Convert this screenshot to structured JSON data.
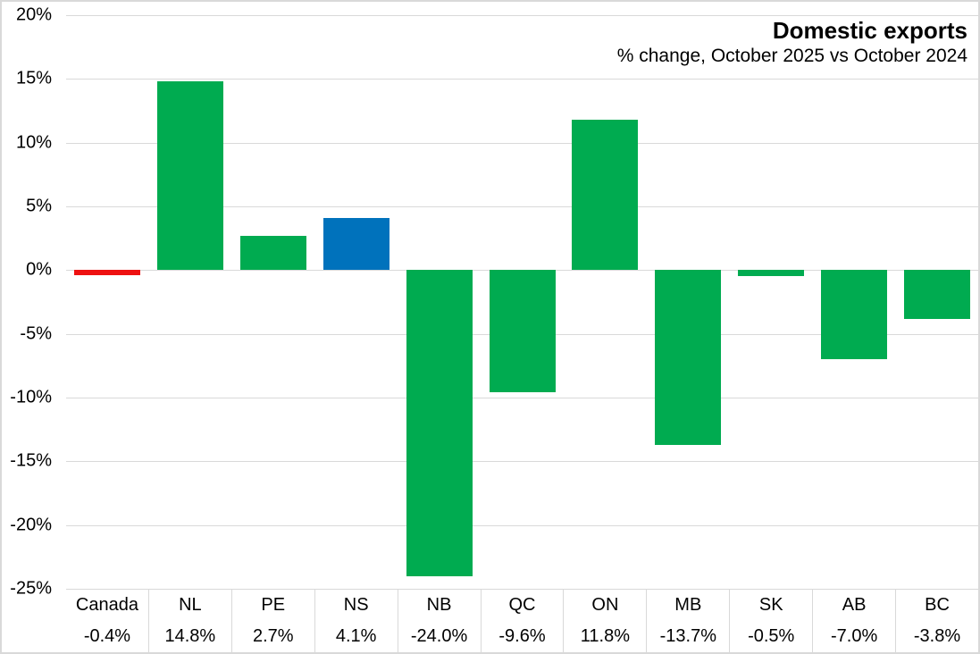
{
  "chart_data": {
    "type": "bar",
    "title": "Domestic exports",
    "subtitle": "% change, October 2025 vs October 2024",
    "categories": [
      "Canada",
      "NL",
      "PE",
      "NS",
      "NB",
      "QC",
      "ON",
      "MB",
      "SK",
      "AB",
      "BC"
    ],
    "values": [
      -0.4,
      14.8,
      2.7,
      4.1,
      -24.0,
      -9.6,
      11.8,
      -13.7,
      -0.5,
      -7.0,
      -3.8
    ],
    "value_labels": [
      "-0.4%",
      "14.8%",
      "2.7%",
      "4.1%",
      "-24.0%",
      "-9.6%",
      "11.8%",
      "-13.7%",
      "-0.5%",
      "-7.0%",
      "-3.8%"
    ],
    "bar_colors": [
      "#ee1111",
      "#00ab50",
      "#00ab50",
      "#0072bc",
      "#00ab50",
      "#00ab50",
      "#00ab50",
      "#00ab50",
      "#00ab50",
      "#00ab50",
      "#00ab50"
    ],
    "ylim": [
      -25,
      20
    ],
    "y_ticks": [
      {
        "value": 20,
        "label": "20%"
      },
      {
        "value": 15,
        "label": "15%"
      },
      {
        "value": 10,
        "label": "10%"
      },
      {
        "value": 5,
        "label": "5%"
      },
      {
        "value": 0,
        "label": "0%"
      },
      {
        "value": -5,
        "label": "-5%"
      },
      {
        "value": -10,
        "label": "-10%"
      },
      {
        "value": -15,
        "label": "-15%"
      },
      {
        "value": -20,
        "label": "-20%"
      },
      {
        "value": -25,
        "label": "-25%"
      }
    ],
    "xlabel": "",
    "ylabel": "",
    "grid": "horizontal",
    "legend": "none",
    "x_axis_style": "data-table"
  },
  "colors": {
    "bar_green": "#00ab50",
    "bar_blue": "#0072bc",
    "bar_red": "#ee1111",
    "gridline": "#d9d9d9",
    "text": "#000000",
    "background": "#ffffff"
  }
}
